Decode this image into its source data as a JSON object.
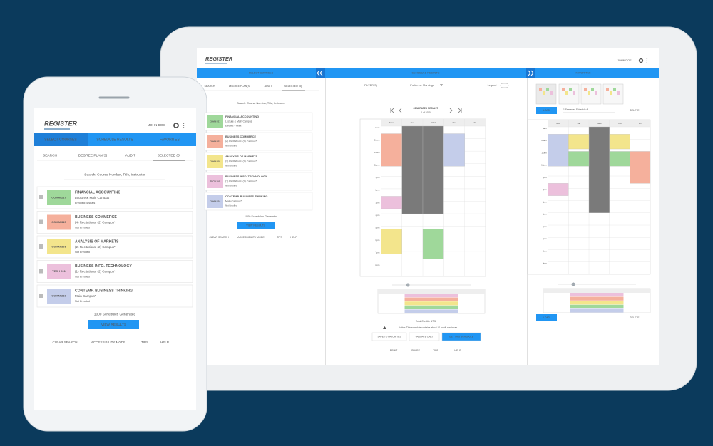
{
  "app": {
    "logo": "REGISTER",
    "user": "JOHN DOE"
  },
  "tabs": [
    "SELECT COURSES",
    "SCHEDULE RESULTS",
    "FAVORITES"
  ],
  "subtabs": [
    "SEARCH",
    "DEGREE PLAN(S)",
    "AUDIT",
    "SELECTED (5)"
  ],
  "search_placeholder": "Search: Course Number, Title, Instructor",
  "courses": [
    {
      "code": "COMM 217",
      "title": "FINANCIAL ACCOUNTING",
      "detail": "Lecture & Main Campus",
      "status": "Enrolled: 4 seats",
      "color": "#9fd89a"
    },
    {
      "code": "COMM 315",
      "title": "BUSINESS COMMERCE",
      "detail": "(4) Recitations, (2) Campus*",
      "status": "Not Enrolled",
      "color": "#f5b09c"
    },
    {
      "code": "COMM 301",
      "title": "ANALYSIS OF MARKETS",
      "detail": "(2) Recitations, (2) Campus*",
      "status": "Not Enrolled",
      "color": "#f3e58c"
    },
    {
      "code": "TECH 201",
      "title": "BUSINESS INFO. TECHNOLOGY",
      "detail": "(1) Recitations, (2) Campus*",
      "status": "Not Enrolled",
      "color": "#ecc0dc"
    },
    {
      "code": "COMM 210",
      "title": "CONTEMP. BUSINESS THINKING",
      "detail": "Main Campus*",
      "status": "Not Enrolled",
      "color": "#c4cdea"
    }
  ],
  "schedules_generated": "1000 Schedules Generated",
  "view_results": "VIEW RESULTS",
  "footer_links": [
    "CLEAR SEARCH",
    "ACCESSIBILITY MODE",
    "TIPS",
    "HELP"
  ],
  "results": {
    "filters": "FILTER(S)",
    "preference": "Preferred: Mornings",
    "legend": "Legend",
    "heading": "GENERATED RESULTS",
    "counter": "1 of 1000",
    "days": [
      "Mon",
      "Tue",
      "Wed",
      "Thu",
      "Fri"
    ],
    "times": [
      "9am",
      "10am",
      "11am",
      "12pm",
      "1pm",
      "2pm",
      "3pm",
      "4pm",
      "5pm",
      "6pm",
      "7pm",
      "8pm"
    ],
    "total_credits": "Total Credits: 17.5",
    "notice": "Notice: This schedule contains about 10 credit maximum",
    "buttons": [
      "SAVE TO FAVORITES",
      "VALIDATE CART",
      "GET THIS SCHEDULE"
    ],
    "footer": [
      "PRINT",
      "SHARE",
      "TIPS",
      "HELP"
    ]
  },
  "favorites": {
    "load": "LOAD",
    "name": "1 Semester Schedule A",
    "delete": "DELETE"
  }
}
